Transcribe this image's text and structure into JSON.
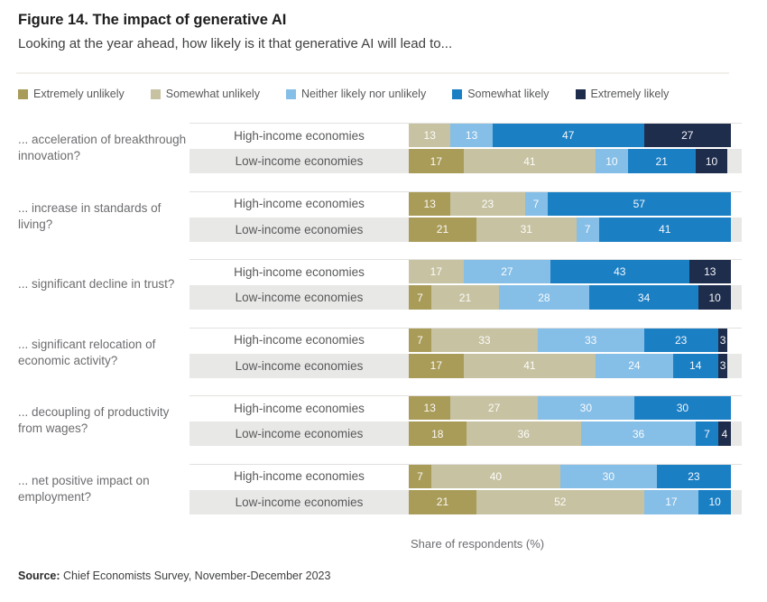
{
  "title": "Figure 14. The impact of generative AI",
  "subtitle": "Looking at the year ahead, how likely is it that generative AI will lead to...",
  "xlabel": "Share of respondents (%)",
  "source": {
    "label": "Source:",
    "text": " Chief Economists Survey, November-December 2023"
  },
  "legend": [
    {
      "label": "Extremely unlikely",
      "color": "#a99b58"
    },
    {
      "label": "Somewhat unlikely",
      "color": "#c7c2a2"
    },
    {
      "label": "Neither likely nor unlikely",
      "color": "#85bee7"
    },
    {
      "label": "Somewhat likely",
      "color": "#1b7fc4"
    },
    {
      "label": "Extremely likely",
      "color": "#1f2d4d"
    }
  ],
  "chart_data": {
    "type": "bar",
    "stacked": true,
    "orientation": "horizontal",
    "unit": "percent",
    "xlim": [
      0,
      100
    ],
    "series_labels": [
      "Extremely unlikely",
      "Somewhat unlikely",
      "Neither likely nor unlikely",
      "Somewhat likely",
      "Extremely likely"
    ],
    "row_labels": [
      "High-income economies",
      "Low-income economies"
    ],
    "groups": [
      {
        "question": "... acceleration of breakthrough innovation?",
        "rows": [
          {
            "label": "High-income economies",
            "values": [
              0,
              13,
              13,
              47,
              27
            ]
          },
          {
            "label": "Low-income economies",
            "values": [
              17,
              41,
              10,
              21,
              10
            ]
          }
        ]
      },
      {
        "question": "... increase in standards of living?",
        "rows": [
          {
            "label": "High-income economies",
            "values": [
              13,
              23,
              7,
              57,
              0
            ]
          },
          {
            "label": "Low-income economies",
            "values": [
              21,
              31,
              7,
              41,
              0
            ]
          }
        ]
      },
      {
        "question": "... significant decline in trust?",
        "rows": [
          {
            "label": "High-income economies",
            "values": [
              0,
              17,
              27,
              43,
              13
            ]
          },
          {
            "label": "Low-income economies",
            "values": [
              7,
              21,
              28,
              34,
              10
            ]
          }
        ]
      },
      {
        "question": "... significant relocation of economic activity?",
        "rows": [
          {
            "label": "High-income economies",
            "values": [
              7,
              33,
              33,
              23,
              3
            ]
          },
          {
            "label": "Low-income economies",
            "values": [
              17,
              41,
              24,
              14,
              3
            ]
          }
        ]
      },
      {
        "question": "... decoupling of productivity from wages?",
        "rows": [
          {
            "label": "High-income economies",
            "values": [
              13,
              27,
              30,
              30,
              0
            ]
          },
          {
            "label": "Low-income economies",
            "values": [
              18,
              36,
              36,
              7,
              4
            ]
          }
        ]
      },
      {
        "question": "... net positive impact on employment?",
        "rows": [
          {
            "label": "High-income economies",
            "values": [
              7,
              40,
              30,
              23,
              0
            ]
          },
          {
            "label": "Low-income economies",
            "values": [
              21,
              52,
              17,
              10,
              0
            ]
          }
        ]
      }
    ]
  }
}
